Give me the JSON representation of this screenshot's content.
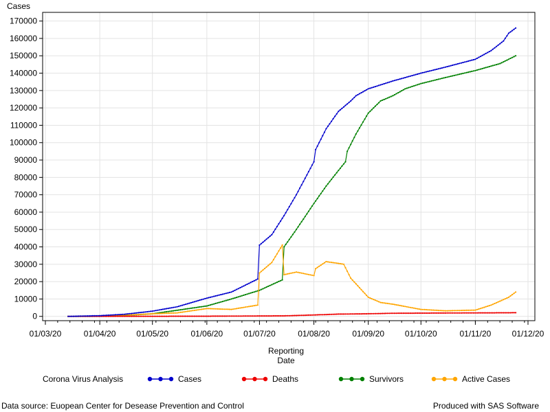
{
  "chart_data": {
    "type": "line",
    "ylabel": "Cases",
    "xlabel_lines": [
      "Reporting",
      "Date"
    ],
    "x_ticks": [
      "01/03/20",
      "01/04/20",
      "01/05/20",
      "01/06/20",
      "01/07/20",
      "01/08/20",
      "01/09/20",
      "01/10/20",
      "01/11/20",
      "01/12/20"
    ],
    "xlim": [
      "2020-03-01",
      "2020-12-01"
    ],
    "y_ticks": [
      0,
      10000,
      20000,
      30000,
      40000,
      50000,
      60000,
      70000,
      80000,
      90000,
      100000,
      110000,
      120000,
      130000,
      140000,
      150000,
      160000,
      170000
    ],
    "ylim": [
      -500,
      175000
    ],
    "grid": true,
    "legend_title": "Corona Virus Analysis",
    "legend_position": "bottom",
    "series": [
      {
        "name": "Cases",
        "color": "#0000cc",
        "points": [
          [
            "2020-03-14",
            0
          ],
          [
            "2020-04-01",
            400
          ],
          [
            "2020-04-15",
            1200
          ],
          [
            "2020-05-01",
            3000
          ],
          [
            "2020-05-15",
            5500
          ],
          [
            "2020-06-01",
            10500
          ],
          [
            "2020-06-15",
            14000
          ],
          [
            "2020-06-30",
            21500
          ],
          [
            "2020-07-01",
            41000
          ],
          [
            "2020-07-08",
            47000
          ],
          [
            "2020-07-15",
            58000
          ],
          [
            "2020-07-22",
            70000
          ],
          [
            "2020-08-01",
            89000
          ],
          [
            "2020-08-02",
            96000
          ],
          [
            "2020-08-08",
            108000
          ],
          [
            "2020-08-15",
            118000
          ],
          [
            "2020-08-22",
            124000
          ],
          [
            "2020-08-25",
            127000
          ],
          [
            "2020-09-01",
            131000
          ],
          [
            "2020-09-15",
            135500
          ],
          [
            "2020-10-01",
            140000
          ],
          [
            "2020-10-15",
            143500
          ],
          [
            "2020-11-01",
            148000
          ],
          [
            "2020-11-10",
            153000
          ],
          [
            "2020-11-17",
            158500
          ],
          [
            "2020-11-20",
            163000
          ],
          [
            "2020-11-24",
            166000
          ]
        ]
      },
      {
        "name": "Deaths",
        "color": "#ee0000",
        "points": [
          [
            "2020-03-14",
            0
          ],
          [
            "2020-06-01",
            100
          ],
          [
            "2020-07-15",
            300
          ],
          [
            "2020-08-01",
            800
          ],
          [
            "2020-08-15",
            1300
          ],
          [
            "2020-09-01",
            1500
          ],
          [
            "2020-09-15",
            1800
          ],
          [
            "2020-11-24",
            2100
          ]
        ]
      },
      {
        "name": "Survivors",
        "color": "#008000",
        "points": [
          [
            "2020-03-14",
            0
          ],
          [
            "2020-04-01",
            100
          ],
          [
            "2020-04-15",
            500
          ],
          [
            "2020-05-01",
            1500
          ],
          [
            "2020-05-15",
            3500
          ],
          [
            "2020-06-01",
            6000
          ],
          [
            "2020-06-15",
            10000
          ],
          [
            "2020-07-01",
            15000
          ],
          [
            "2020-07-14",
            21000
          ],
          [
            "2020-07-15",
            40000
          ],
          [
            "2020-07-22",
            50000
          ],
          [
            "2020-08-01",
            65000
          ],
          [
            "2020-08-08",
            75000
          ],
          [
            "2020-08-15",
            84000
          ],
          [
            "2020-08-19",
            89000
          ],
          [
            "2020-08-20",
            95000
          ],
          [
            "2020-08-25",
            105000
          ],
          [
            "2020-09-01",
            117000
          ],
          [
            "2020-09-08",
            124000
          ],
          [
            "2020-09-15",
            127000
          ],
          [
            "2020-09-22",
            131000
          ],
          [
            "2020-10-01",
            134000
          ],
          [
            "2020-10-15",
            137500
          ],
          [
            "2020-11-01",
            141500
          ],
          [
            "2020-11-15",
            145500
          ],
          [
            "2020-11-24",
            150000
          ]
        ]
      },
      {
        "name": "Active Cases",
        "color": "#ffa500",
        "points": [
          [
            "2020-03-14",
            0
          ],
          [
            "2020-04-01",
            300
          ],
          [
            "2020-04-15",
            700
          ],
          [
            "2020-05-01",
            1500
          ],
          [
            "2020-05-15",
            2000
          ],
          [
            "2020-06-01",
            4500
          ],
          [
            "2020-06-15",
            4000
          ],
          [
            "2020-06-30",
            6500
          ],
          [
            "2020-07-01",
            25000
          ],
          [
            "2020-07-08",
            31000
          ],
          [
            "2020-07-14",
            41000
          ],
          [
            "2020-07-15",
            24000
          ],
          [
            "2020-07-22",
            25500
          ],
          [
            "2020-08-01",
            23500
          ],
          [
            "2020-08-02",
            27500
          ],
          [
            "2020-08-08",
            31500
          ],
          [
            "2020-08-15",
            30500
          ],
          [
            "2020-08-18",
            30000
          ],
          [
            "2020-08-22",
            22000
          ],
          [
            "2020-09-01",
            11000
          ],
          [
            "2020-09-08",
            8000
          ],
          [
            "2020-09-15",
            7000
          ],
          [
            "2020-10-01",
            4000
          ],
          [
            "2020-10-15",
            3200
          ],
          [
            "2020-11-01",
            3600
          ],
          [
            "2020-11-10",
            6500
          ],
          [
            "2020-11-20",
            11000
          ],
          [
            "2020-11-24",
            14000
          ]
        ]
      }
    ]
  },
  "footer": {
    "source": "Data source: Euopean Center for Desease Prevention and Control",
    "credit": "Produced with SAS Software"
  }
}
